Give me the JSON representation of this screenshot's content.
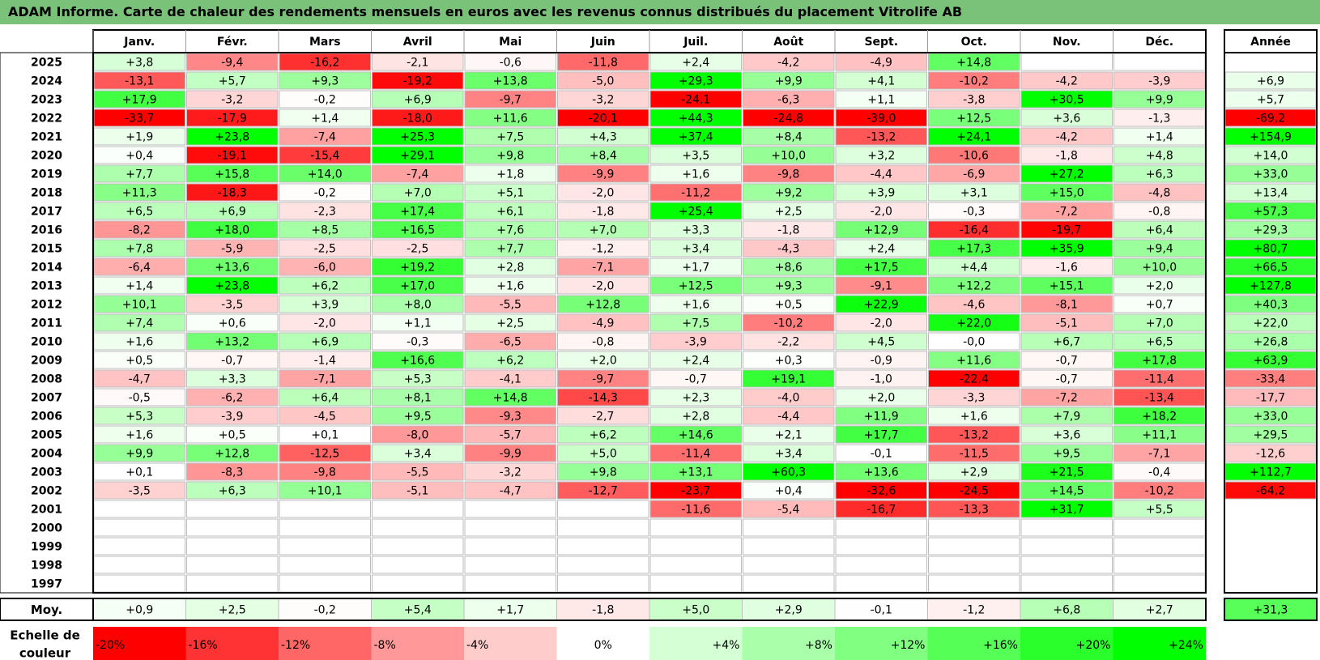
{
  "title": "ADAM Informe. Carte de chaleur des rendements mensuels en euros avec les revenus connus distribués du placement Vitrolife AB",
  "chart_data": {
    "type": "heatmap",
    "months": [
      "Janv.",
      "Févr.",
      "Mars",
      "Avril",
      "Mai",
      "Juin",
      "Juil.",
      "Août",
      "Sept.",
      "Oct.",
      "Nov.",
      "Déc."
    ],
    "year_header": "Année",
    "rows": [
      {
        "year": "2025",
        "months": [
          "+3,8",
          "-9,4",
          "-16,2",
          "-2,1",
          "-0,6",
          "-11,8",
          "+2,4",
          "-4,2",
          "-4,9",
          "+14,8",
          "",
          ""
        ],
        "annual": ""
      },
      {
        "year": "2024",
        "months": [
          "-13,1",
          "+5,7",
          "+9,3",
          "-19,2",
          "+13,8",
          "-5,0",
          "+29,3",
          "+9,9",
          "+4,1",
          "-10,2",
          "-4,2",
          "-3,9"
        ],
        "annual": "+6,9"
      },
      {
        "year": "2023",
        "months": [
          "+17,9",
          "-3,2",
          "-0,2",
          "+6,9",
          "-9,7",
          "-3,2",
          "-24,1",
          "-6,3",
          "+1,1",
          "-3,8",
          "+30,5",
          "+9,9"
        ],
        "annual": "+5,7"
      },
      {
        "year": "2022",
        "months": [
          "-33,7",
          "-17,9",
          "+1,4",
          "-18,0",
          "+11,6",
          "-20,1",
          "+44,3",
          "-24,8",
          "-39,0",
          "+12,5",
          "+3,6",
          "-1,3"
        ],
        "annual": "-69,2"
      },
      {
        "year": "2021",
        "months": [
          "+1,9",
          "+23,8",
          "-7,4",
          "+25,3",
          "+7,5",
          "+4,3",
          "+37,4",
          "+8,4",
          "-13,2",
          "+24,1",
          "-4,2",
          "+1,4"
        ],
        "annual": "+154,9"
      },
      {
        "year": "2020",
        "months": [
          "+0,4",
          "-19,1",
          "-15,4",
          "+29,1",
          "+9,8",
          "+8,4",
          "+3,5",
          "+10,0",
          "+3,2",
          "-10,6",
          "-1,8",
          "+4,8"
        ],
        "annual": "+14,0"
      },
      {
        "year": "2019",
        "months": [
          "+7,7",
          "+15,8",
          "+14,0",
          "-7,4",
          "+1,8",
          "-9,9",
          "+1,6",
          "-9,8",
          "-4,4",
          "-6,9",
          "+27,2",
          "+6,3"
        ],
        "annual": "+33,0"
      },
      {
        "year": "2018",
        "months": [
          "+11,3",
          "-18,3",
          "-0,2",
          "+7,0",
          "+5,1",
          "-2,0",
          "-11,2",
          "+9,2",
          "+3,9",
          "+3,1",
          "+15,0",
          "-4,8"
        ],
        "annual": "+13,4"
      },
      {
        "year": "2017",
        "months": [
          "+6,5",
          "+6,9",
          "-2,3",
          "+17,4",
          "+6,1",
          "-1,8",
          "+25,4",
          "+2,5",
          "-2,0",
          "-0,3",
          "-7,2",
          "-0,8"
        ],
        "annual": "+57,3"
      },
      {
        "year": "2016",
        "months": [
          "-8,2",
          "+18,0",
          "+8,5",
          "+16,5",
          "+7,6",
          "+7,0",
          "+3,3",
          "-1,8",
          "+12,9",
          "-16,4",
          "-19,7",
          "+6,4"
        ],
        "annual": "+29,3"
      },
      {
        "year": "2015",
        "months": [
          "+7,8",
          "-5,9",
          "-2,5",
          "-2,5",
          "+7,7",
          "-1,2",
          "+3,4",
          "-4,3",
          "+2,4",
          "+17,3",
          "+35,9",
          "+9,4"
        ],
        "annual": "+80,7"
      },
      {
        "year": "2014",
        "months": [
          "-6,4",
          "+13,6",
          "-6,0",
          "+19,2",
          "+2,8",
          "-7,1",
          "+1,7",
          "+8,6",
          "+17,5",
          "+4,4",
          "-1,6",
          "+10,0"
        ],
        "annual": "+66,5"
      },
      {
        "year": "2013",
        "months": [
          "+1,4",
          "+23,8",
          "+6,2",
          "+17,0",
          "+1,6",
          "-2,0",
          "+12,5",
          "+9,3",
          "-9,1",
          "+12,2",
          "+15,1",
          "+2,0"
        ],
        "annual": "+127,8"
      },
      {
        "year": "2012",
        "months": [
          "+10,1",
          "-3,5",
          "+3,9",
          "+8,0",
          "-5,5",
          "+12,8",
          "+1,6",
          "+0,5",
          "+22,9",
          "-4,6",
          "-8,1",
          "+0,7"
        ],
        "annual": "+40,3"
      },
      {
        "year": "2011",
        "months": [
          "+7,4",
          "+0,6",
          "-2,0",
          "+1,1",
          "+2,5",
          "-4,9",
          "+7,5",
          "-10,2",
          "-2,0",
          "+22,0",
          "-5,1",
          "+7,0"
        ],
        "annual": "+22,0"
      },
      {
        "year": "2010",
        "months": [
          "+1,6",
          "+13,2",
          "+6,9",
          "-0,3",
          "-6,5",
          "-0,8",
          "-3,9",
          "-2,2",
          "+4,5",
          "-0,0",
          "+6,7",
          "+6,5"
        ],
        "annual": "+26,8"
      },
      {
        "year": "2009",
        "months": [
          "+0,5",
          "-0,7",
          "-1,4",
          "+16,6",
          "+6,2",
          "+2,0",
          "+2,4",
          "+0,3",
          "-0,9",
          "+11,6",
          "-0,7",
          "+17,8"
        ],
        "annual": "+63,9"
      },
      {
        "year": "2008",
        "months": [
          "-4,7",
          "+3,3",
          "-7,1",
          "+5,3",
          "-4,1",
          "-9,7",
          "-0,7",
          "+19,1",
          "-1,0",
          "-22,4",
          "-0,7",
          "-11,4"
        ],
        "annual": "-33,4"
      },
      {
        "year": "2007",
        "months": [
          "-0,5",
          "-6,2",
          "+6,4",
          "+8,1",
          "+14,8",
          "-14,3",
          "+2,3",
          "-4,0",
          "+2,0",
          "-3,3",
          "-7,2",
          "-13,4"
        ],
        "annual": "-17,7"
      },
      {
        "year": "2006",
        "months": [
          "+5,3",
          "-3,9",
          "-4,5",
          "+9,5",
          "-9,3",
          "-2,7",
          "+2,8",
          "-4,4",
          "+11,9",
          "+1,6",
          "+7,9",
          "+18,2"
        ],
        "annual": "+33,0"
      },
      {
        "year": "2005",
        "months": [
          "+1,6",
          "+0,5",
          "+0,1",
          "-8,0",
          "-5,7",
          "+6,2",
          "+14,6",
          "+2,1",
          "+17,7",
          "-13,2",
          "+3,6",
          "+11,1"
        ],
        "annual": "+29,5"
      },
      {
        "year": "2004",
        "months": [
          "+9,9",
          "+12,8",
          "-12,5",
          "+3,4",
          "-9,9",
          "+5,0",
          "-11,4",
          "+3,4",
          "-0,1",
          "-11,5",
          "+9,5",
          "-7,1"
        ],
        "annual": "-12,6"
      },
      {
        "year": "2003",
        "months": [
          "+0,1",
          "-8,3",
          "-9,8",
          "-5,5",
          "-3,2",
          "+9,8",
          "+13,1",
          "+60,3",
          "+13,6",
          "+2,9",
          "+21,5",
          "-0,4"
        ],
        "annual": "+112,7"
      },
      {
        "year": "2002",
        "months": [
          "-3,5",
          "+6,3",
          "+10,1",
          "-5,1",
          "-4,7",
          "-12,7",
          "-23,7",
          "+0,4",
          "-32,6",
          "-24,5",
          "+14,5",
          "-10,2"
        ],
        "annual": "-64,2"
      },
      {
        "year": "2001",
        "months": [
          "",
          "",
          "",
          "",
          "",
          "",
          "-11,6",
          "-5,4",
          "-16,7",
          "-13,3",
          "+31,7",
          "+5,5"
        ],
        "annual": ""
      },
      {
        "year": "2000",
        "months": [
          "",
          "",
          "",
          "",
          "",
          "",
          "",
          "",
          "",
          "",
          "",
          ""
        ],
        "annual": ""
      },
      {
        "year": "1999",
        "months": [
          "",
          "",
          "",
          "",
          "",
          "",
          "",
          "",
          "",
          "",
          "",
          ""
        ],
        "annual": ""
      },
      {
        "year": "1998",
        "months": [
          "",
          "",
          "",
          "",
          "",
          "",
          "",
          "",
          "",
          "",
          "",
          ""
        ],
        "annual": ""
      },
      {
        "year": "1997",
        "months": [
          "",
          "",
          "",
          "",
          "",
          "",
          "",
          "",
          "",
          "",
          "",
          ""
        ],
        "annual": ""
      }
    ],
    "average": {
      "label": "Moy.",
      "months": [
        "+0,9",
        "+2,5",
        "-0,2",
        "+5,4",
        "+1,7",
        "-1,8",
        "+5,0",
        "+2,9",
        "-0,1",
        "-1,2",
        "+6,8",
        "+2,7"
      ],
      "annual": "+31,3"
    },
    "scale": {
      "label_lines": [
        "Echelle de",
        "couleur"
      ],
      "steps": [
        "-20%",
        "-16%",
        "-12%",
        "-8%",
        "-4%",
        "0%",
        "+4%",
        "+8%",
        "+12%",
        "+16%",
        "+20%",
        "+24%"
      ]
    },
    "color_scale": {
      "negative": "#ff0000",
      "neutral": "#ffffff",
      "positive": "#00ff00",
      "min": -20,
      "max": 24
    }
  }
}
